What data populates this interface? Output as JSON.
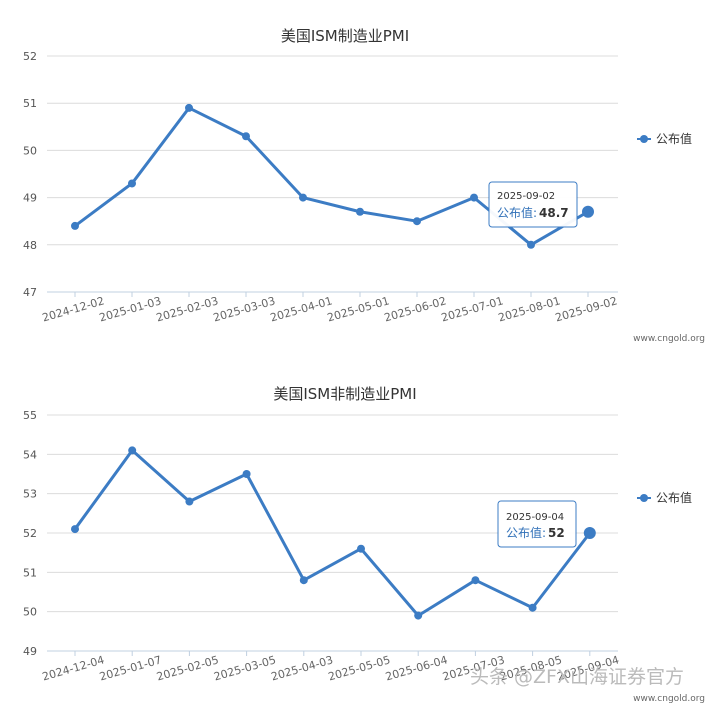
{
  "colors": {
    "series": "#3c7cc4",
    "grid": "#dcdcdc",
    "axis": "#c0d0e0",
    "tooltip_border": "#3c7cc4"
  },
  "credit": "www.cngold.org",
  "watermark": "头条 @ZFX山海证券官方",
  "chart_data": [
    {
      "type": "line",
      "title": "美国ISM制造业PMI",
      "x": [
        "2024-12-02",
        "2025-01-03",
        "2025-02-03",
        "2025-03-03",
        "2025-04-01",
        "2025-05-01",
        "2025-06-02",
        "2025-07-01",
        "2025-08-01",
        "2025-09-02"
      ],
      "series": [
        {
          "name": "公布值",
          "values": [
            48.4,
            49.3,
            50.9,
            50.3,
            49.0,
            48.7,
            48.5,
            49.0,
            48.0,
            48.7
          ]
        }
      ],
      "ylim": [
        47,
        52
      ],
      "yticks": [
        47,
        48,
        49,
        50,
        51,
        52
      ],
      "grid": true,
      "legend": "right",
      "tooltip": {
        "date": "2025-09-02",
        "label": "公布值:",
        "value": "48.7"
      }
    },
    {
      "type": "line",
      "title": "美国ISM非制造业PMI",
      "x": [
        "2024-12-04",
        "2025-01-07",
        "2025-02-05",
        "2025-03-05",
        "2025-04-03",
        "2025-05-05",
        "2025-06-04",
        "2025-07-03",
        "2025-08-05",
        "2025-09-04"
      ],
      "series": [
        {
          "name": "公布值",
          "values": [
            52.1,
            54.1,
            52.8,
            53.5,
            50.8,
            51.6,
            49.9,
            50.8,
            50.1,
            52.0
          ]
        }
      ],
      "ylim": [
        49,
        55
      ],
      "yticks": [
        49,
        50,
        51,
        52,
        53,
        54,
        55
      ],
      "grid": true,
      "legend": "right",
      "tooltip": {
        "date": "2025-09-04",
        "label": "公布值:",
        "value": "52"
      }
    }
  ]
}
